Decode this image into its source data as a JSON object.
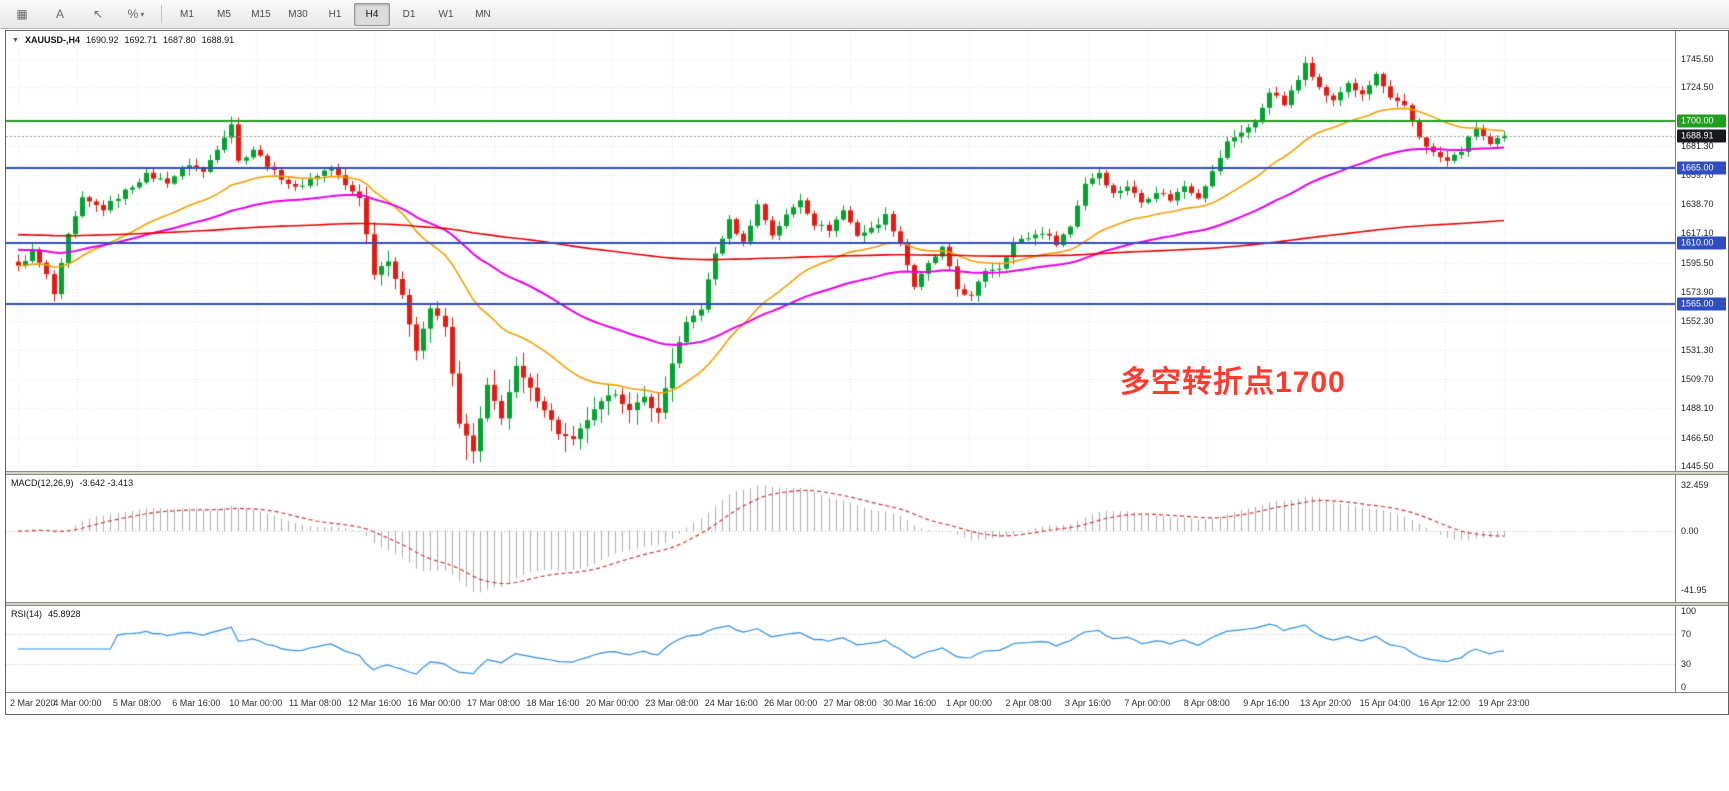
{
  "toolbar": {
    "tools": [
      {
        "name": "chart-grid",
        "glyph": "▦"
      },
      {
        "name": "text-tool",
        "glyph": "A"
      },
      {
        "name": "cursor-tool",
        "glyph": "↖"
      },
      {
        "name": "chart-style-dropdown",
        "glyph": "%",
        "caret": "▾"
      }
    ],
    "timeframes": [
      "M1",
      "M5",
      "M15",
      "M30",
      "H1",
      "H4",
      "D1",
      "W1",
      "MN"
    ],
    "active_timeframe": "H4"
  },
  "chart": {
    "title": {
      "dropdown_glyph": "▼",
      "symbol_period": "XAUUSD-,H4",
      "open": "1690.92",
      "high": "1692.71",
      "low": "1687.80",
      "close": "1688.91"
    },
    "annotation": {
      "text": "多空转折点1700",
      "color": "#FF3B30"
    }
  },
  "chart_data": {
    "type": "candlestick",
    "symbol": "XAUUSD-",
    "timeframe": "H4",
    "candle_count": 210,
    "current_price": 1688.91,
    "price_axis": {
      "min": 1442,
      "max": 1766,
      "labels": [
        1745.5,
        1724.5,
        1681.3,
        1659.7,
        1638.7,
        1617.1,
        1595.5,
        1573.9,
        1552.3,
        1531.3,
        1509.7,
        1488.1,
        1466.5,
        1445.5
      ]
    },
    "badges": [
      {
        "value": 1700.0,
        "text": "1700.00",
        "bg": "#1F9E1F"
      },
      {
        "value": 1688.91,
        "text": "1688.91",
        "bg": "#14181F"
      },
      {
        "value": 1665.0,
        "text": "1665.00",
        "bg": "#2F4DBF"
      },
      {
        "value": 1610.0,
        "text": "1610.00",
        "bg": "#2F4DBF"
      },
      {
        "value": 1565.0,
        "text": "1565.00",
        "bg": "#2F4DBF"
      }
    ],
    "hlines": [
      {
        "value": 1700.0,
        "color": "#1F9E1F",
        "width": 2
      },
      {
        "value": 1665.0,
        "color": "#2F4DBF",
        "width": 2
      },
      {
        "value": 1610.0,
        "color": "#2F4DBF",
        "width": 2
      },
      {
        "value": 1565.0,
        "color": "#2F4DBF",
        "width": 2
      }
    ],
    "candles_waypoints": [
      [
        0,
        1592
      ],
      [
        2,
        1604
      ],
      [
        4,
        1586
      ],
      [
        5,
        1572
      ],
      [
        7,
        1615
      ],
      [
        9,
        1642
      ],
      [
        12,
        1635
      ],
      [
        15,
        1648
      ],
      [
        18,
        1660
      ],
      [
        21,
        1655
      ],
      [
        24,
        1668
      ],
      [
        26,
        1662
      ],
      [
        28,
        1680
      ],
      [
        30,
        1698
      ],
      [
        31,
        1670
      ],
      [
        33,
        1679
      ],
      [
        36,
        1662
      ],
      [
        39,
        1650
      ],
      [
        42,
        1660
      ],
      [
        44,
        1666
      ],
      [
        46,
        1652
      ],
      [
        48,
        1644
      ],
      [
        50,
        1588
      ],
      [
        52,
        1598
      ],
      [
        54,
        1570
      ],
      [
        56,
        1532
      ],
      [
        58,
        1562
      ],
      [
        60,
        1548
      ],
      [
        62,
        1478
      ],
      [
        64,
        1456
      ],
      [
        66,
        1504
      ],
      [
        68,
        1482
      ],
      [
        70,
        1518
      ],
      [
        72,
        1502
      ],
      [
        74,
        1488
      ],
      [
        76,
        1470
      ],
      [
        78,
        1464
      ],
      [
        80,
        1480
      ],
      [
        82,
        1492
      ],
      [
        84,
        1500
      ],
      [
        86,
        1486
      ],
      [
        88,
        1496
      ],
      [
        90,
        1484
      ],
      [
        92,
        1522
      ],
      [
        94,
        1550
      ],
      [
        96,
        1562
      ],
      [
        98,
        1602
      ],
      [
        100,
        1626
      ],
      [
        102,
        1610
      ],
      [
        104,
        1638
      ],
      [
        106,
        1616
      ],
      [
        108,
        1630
      ],
      [
        110,
        1642
      ],
      [
        112,
        1624
      ],
      [
        114,
        1620
      ],
      [
        116,
        1634
      ],
      [
        118,
        1616
      ],
      [
        120,
        1620
      ],
      [
        122,
        1630
      ],
      [
        124,
        1610
      ],
      [
        126,
        1578
      ],
      [
        128,
        1594
      ],
      [
        130,
        1606
      ],
      [
        132,
        1576
      ],
      [
        134,
        1570
      ],
      [
        136,
        1590
      ],
      [
        138,
        1592
      ],
      [
        140,
        1610
      ],
      [
        142,
        1614
      ],
      [
        144,
        1618
      ],
      [
        146,
        1610
      ],
      [
        148,
        1622
      ],
      [
        150,
        1654
      ],
      [
        152,
        1662
      ],
      [
        154,
        1646
      ],
      [
        156,
        1652
      ],
      [
        158,
        1640
      ],
      [
        160,
        1648
      ],
      [
        162,
        1642
      ],
      [
        164,
        1652
      ],
      [
        166,
        1644
      ],
      [
        168,
        1662
      ],
      [
        170,
        1684
      ],
      [
        172,
        1692
      ],
      [
        174,
        1698
      ],
      [
        176,
        1722
      ],
      [
        178,
        1712
      ],
      [
        180,
        1730
      ],
      [
        181,
        1744
      ],
      [
        183,
        1724
      ],
      [
        185,
        1714
      ],
      [
        187,
        1728
      ],
      [
        189,
        1718
      ],
      [
        191,
        1734
      ],
      [
        193,
        1716
      ],
      [
        195,
        1710
      ],
      [
        197,
        1688
      ],
      [
        199,
        1676
      ],
      [
        201,
        1670
      ],
      [
        203,
        1678
      ],
      [
        205,
        1695
      ],
      [
        207,
        1682
      ],
      [
        209,
        1689
      ]
    ],
    "extremes": [
      {
        "index": 30,
        "high": 1703
      },
      {
        "index": 63,
        "low": 1450
      },
      {
        "index": 64,
        "low": 1451
      },
      {
        "index": 181,
        "high": 1747
      }
    ],
    "volatile_range": [
      48,
      92
    ],
    "moving_averages": [
      {
        "name": "ma-fast",
        "period": 26,
        "color": "#F0A000",
        "width": 1.6,
        "seed": null
      },
      {
        "name": "ma-mid",
        "period": 60,
        "color": "#E800E8",
        "width": 2,
        "seed": 1605
      },
      {
        "name": "ma-slow",
        "period": 350,
        "color": "#E60000",
        "width": 1.6,
        "seed": 1616
      }
    ],
    "macd": {
      "label": "MACD(12,26,9)",
      "values_text": "-3.642 -3.413",
      "fast": 12,
      "slow": 26,
      "signal": 9,
      "range": [
        35.5,
        -46
      ],
      "axis": [
        {
          "value": 32.459,
          "text": "32.459"
        },
        {
          "value": 0,
          "text": "0.00"
        },
        {
          "value": -41.95,
          "text": "-41.95"
        }
      ]
    },
    "rsi": {
      "label": "RSI(14)",
      "value_text": "45.8928",
      "period": 14,
      "levels": [
        70,
        30
      ],
      "axis": [
        {
          "value": 100,
          "text": "100"
        },
        {
          "value": 70,
          "text": "70"
        },
        {
          "value": 30,
          "text": "30"
        },
        {
          "value": 0,
          "text": "0"
        }
      ]
    },
    "time_axis": [
      "2 Mar 2020",
      "4 Mar 00:00",
      "5 Mar 08:00",
      "6 Mar 16:00",
      "10 Mar 00:00",
      "11 Mar 08:00",
      "12 Mar 16:00",
      "16 Mar 00:00",
      "17 Mar 08:00",
      "18 Mar 16:00",
      "20 Mar 00:00",
      "23 Mar 08:00",
      "24 Mar 16:00",
      "26 Mar 00:00",
      "27 Mar 08:00",
      "30 Mar 16:00",
      "1 Apr 00:00",
      "2 Apr 08:00",
      "3 Apr 16:00",
      "7 Apr 00:00",
      "8 Apr 08:00",
      "9 Apr 16:00",
      "13 Apr 20:00",
      "15 Apr 04:00",
      "16 Apr 12:00",
      "19 Apr 23:00"
    ],
    "style": {
      "up": "#00A32E",
      "down": "#E51B12",
      "grid": "#E7E7E7",
      "current_line": "#9C9C9C",
      "macd_hist": "#ADADAD",
      "macd_signal": "#D93434",
      "macd_zero": "#C8C8C8",
      "rsi_line": "#2E90E0",
      "rsi_levels": "#C0C0C0"
    }
  }
}
